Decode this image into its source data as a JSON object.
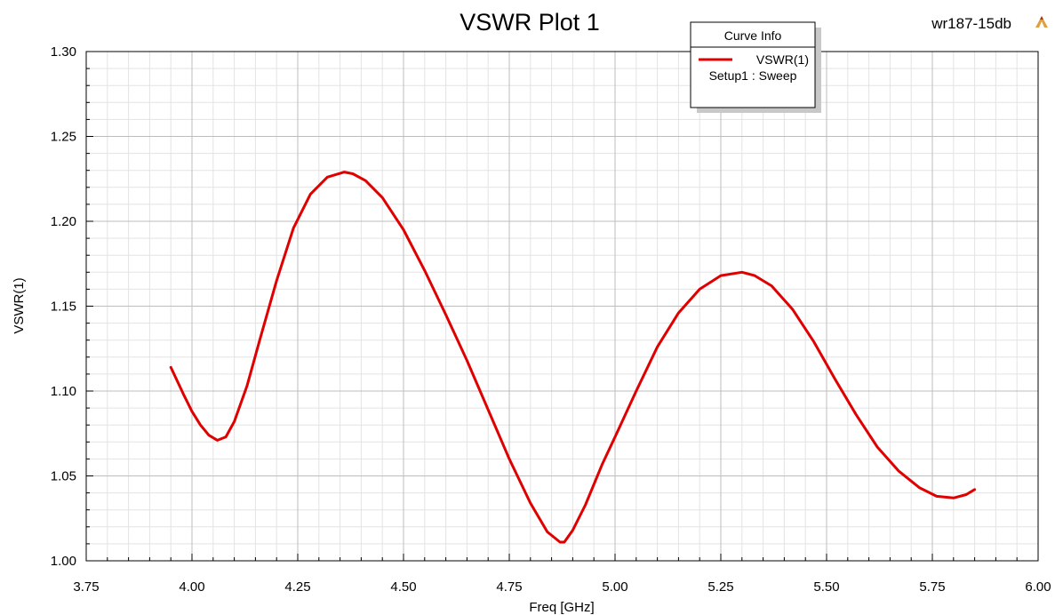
{
  "header": {
    "title": "VSWR Plot 1",
    "design_name": "wr187-15db",
    "logo_icon": "ansys-logo-icon"
  },
  "legend": {
    "title": "Curve Info",
    "series_name": "VSWR(1)",
    "setup": "Setup1 : Sweep"
  },
  "chart_data": {
    "type": "line",
    "title": "VSWR Plot 1",
    "xlabel": "Freq [GHz]",
    "ylabel": "VSWR(1)",
    "xlim": [
      3.75,
      6.0
    ],
    "ylim": [
      1.0,
      1.3
    ],
    "x_ticks": [
      "3.75",
      "4.00",
      "4.25",
      "4.50",
      "4.75",
      "5.00",
      "5.25",
      "5.50",
      "5.75",
      "6.00"
    ],
    "y_ticks": [
      "1.00",
      "1.05",
      "1.10",
      "1.15",
      "1.20",
      "1.25",
      "1.30"
    ],
    "grid": true,
    "legend_position": "top-right",
    "series": [
      {
        "name": "VSWR(1)",
        "color": "#e00000",
        "x": [
          3.95,
          3.98,
          4.0,
          4.02,
          4.04,
          4.06,
          4.08,
          4.1,
          4.13,
          4.16,
          4.2,
          4.24,
          4.28,
          4.32,
          4.36,
          4.38,
          4.41,
          4.45,
          4.5,
          4.55,
          4.6,
          4.65,
          4.7,
          4.75,
          4.8,
          4.84,
          4.87,
          4.88,
          4.9,
          4.93,
          4.97,
          5.0,
          5.05,
          5.1,
          5.15,
          5.2,
          5.25,
          5.3,
          5.33,
          5.37,
          5.42,
          5.47,
          5.52,
          5.57,
          5.62,
          5.67,
          5.72,
          5.76,
          5.8,
          5.83,
          5.85
        ],
        "y": [
          1.114,
          1.098,
          1.088,
          1.08,
          1.074,
          1.071,
          1.073,
          1.082,
          1.103,
          1.13,
          1.165,
          1.196,
          1.216,
          1.226,
          1.229,
          1.228,
          1.224,
          1.214,
          1.195,
          1.171,
          1.145,
          1.118,
          1.089,
          1.06,
          1.034,
          1.017,
          1.011,
          1.011,
          1.018,
          1.033,
          1.057,
          1.073,
          1.1,
          1.126,
          1.146,
          1.16,
          1.168,
          1.17,
          1.168,
          1.162,
          1.148,
          1.129,
          1.107,
          1.086,
          1.067,
          1.053,
          1.043,
          1.038,
          1.037,
          1.039,
          1.042
        ]
      }
    ]
  }
}
